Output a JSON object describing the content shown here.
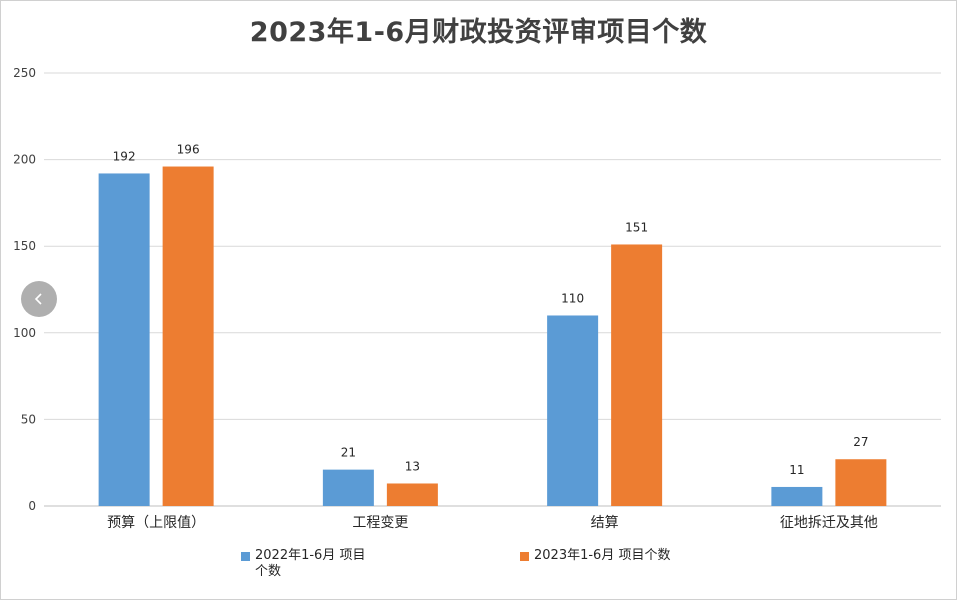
{
  "chart_data": {
    "type": "bar",
    "title": "2023年1-6月财政投资评审项目个数",
    "categories": [
      "预算（上限值）",
      "工程变更",
      "结算",
      "征地拆迁及其他"
    ],
    "series": [
      {
        "name": "2022年1-6月 项目个数",
        "name_line1": "2022年1-6月 项目",
        "name_line2": "个数",
        "color": "#5b9bd5",
        "values": [
          192,
          21,
          110,
          11
        ]
      },
      {
        "name": "2023年1-6月 项目个数",
        "color": "#ed7d31",
        "values": [
          196,
          13,
          151,
          27
        ]
      }
    ],
    "ylim": [
      0,
      250
    ],
    "yticks": [
      0,
      50,
      100,
      150,
      200,
      250
    ],
    "grid": true,
    "legend": "bottom",
    "xlabel": "",
    "ylabel": ""
  },
  "ui": {
    "prev_icon": "chevron-left-icon"
  }
}
